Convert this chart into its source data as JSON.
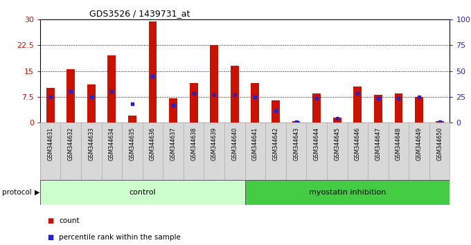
{
  "title": "GDS3526 / 1439731_at",
  "samples": [
    "GSM344631",
    "GSM344632",
    "GSM344633",
    "GSM344634",
    "GSM344635",
    "GSM344636",
    "GSM344637",
    "GSM344638",
    "GSM344639",
    "GSM344640",
    "GSM344641",
    "GSM344642",
    "GSM344643",
    "GSM344644",
    "GSM344645",
    "GSM344646",
    "GSM344647",
    "GSM344648",
    "GSM344649",
    "GSM344650"
  ],
  "red_values": [
    10.0,
    15.5,
    11.0,
    19.5,
    2.0,
    29.5,
    7.0,
    11.5,
    22.5,
    16.5,
    11.5,
    6.5,
    0.4,
    8.5,
    1.5,
    10.5,
    8.0,
    8.5,
    7.5,
    0.4
  ],
  "blue_values": [
    7.5,
    9.0,
    7.5,
    9.0,
    5.5,
    13.5,
    5.0,
    8.5,
    8.0,
    8.0,
    7.5,
    3.5,
    0.3,
    7.0,
    1.2,
    8.5,
    7.0,
    7.0,
    7.5,
    0.3
  ],
  "groups": [
    {
      "label": "control",
      "start": 0,
      "end": 10,
      "color": "#ccffcc"
    },
    {
      "label": "myostatin inhibition",
      "start": 10,
      "end": 20,
      "color": "#44cc44"
    }
  ],
  "ylim_left": [
    0,
    30
  ],
  "ylim_right": [
    0,
    100
  ],
  "yticks_left": [
    0,
    7.5,
    15,
    22.5,
    30
  ],
  "ytick_labels_left": [
    "0",
    "7.5",
    "15",
    "22.5",
    "30"
  ],
  "yticks_right": [
    0,
    25,
    50,
    75,
    100
  ],
  "ytick_labels_right": [
    "0",
    "25",
    "50",
    "75",
    "100%"
  ],
  "bar_color": "#cc1100",
  "dot_color": "#2222cc",
  "bg_color": "#d8d8d8",
  "plot_bg": "#ffffff",
  "legend_red": "count",
  "legend_blue": "percentile rank within the sample",
  "protocol_label": "protocol",
  "bar_width": 0.4
}
